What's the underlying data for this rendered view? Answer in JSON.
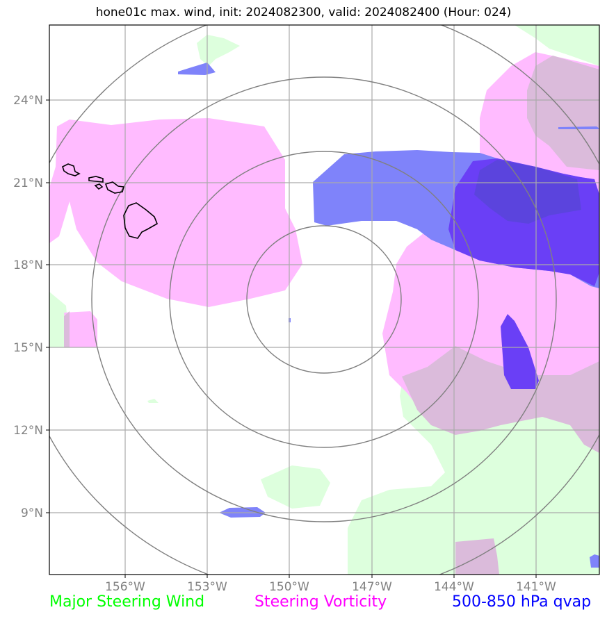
{
  "title": "hone01c max. wind, init: 2024082300, valid: 2024082400 (Hour: 024)",
  "lat_labels": [
    "24°N",
    "21°N",
    "18°N",
    "15°N",
    "12°N",
    "9°N"
  ],
  "lon_labels": [
    "156°W",
    "153°W",
    "150°W",
    "147°W",
    "144°W",
    "141°W"
  ],
  "legend": [
    {
      "label": "Major Steering Wind",
      "color": "#00ff00"
    },
    {
      "label": "Steering Vorticity",
      "color": "#ff00ff"
    },
    {
      "label": "500-850 hPa qvap",
      "color": "#0000ff"
    }
  ],
  "colors": {
    "wind_fill": "#ddffdd",
    "vorticity_fill": "#ffbbff",
    "overlap_fill": "#dbbbdb",
    "qvap_fill": "#7f83fa",
    "qvap_dark_fill": "#6a3ff6",
    "gridline": "#aaaaaa",
    "range_ring": "#808080",
    "coastline": "#000000"
  }
}
